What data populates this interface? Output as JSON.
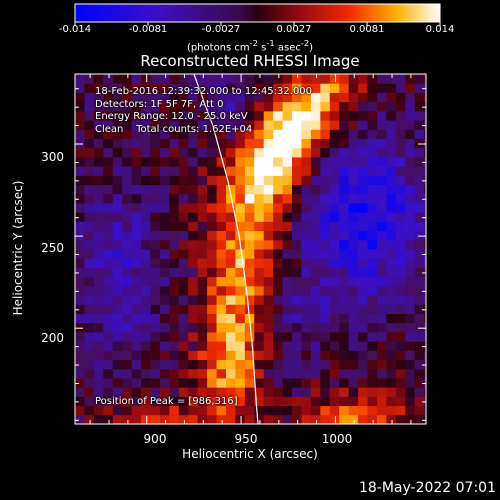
{
  "colorbar": {
    "ticks": [
      "-0.014",
      "-0.0081",
      "-0.0027",
      "0.0027",
      "0.0081",
      "0.014"
    ],
    "units_html": "(photons cm<sup>-2</sup> s<sup>-1</sup> asec<sup>-2</sup>)"
  },
  "title": "Reconstructed RHESSI Image",
  "info": {
    "line1": "18-Feb-2016 12:39:32.000 to 12:45:32.000",
    "line2": "Detectors: 1F 5F 7F, Att 0",
    "line3": "Energy Range: 12.0 - 25.0 keV",
    "line4": "Clean    Total counts: 1.62E+04"
  },
  "peak": "Position of Peak = [986,316]",
  "footer_date": "18-May-2022 07:01",
  "chart_data": {
    "type": "heatmap",
    "title": "Reconstructed RHESSI Image",
    "xlabel": "Heliocentric X (arcsec)",
    "ylabel": "Heliocentric Y (arcsec)",
    "xlim": [
      862,
      1048
    ],
    "ylim": [
      148,
      338
    ],
    "x_ticks": [
      900,
      950,
      1000
    ],
    "y_ticks": [
      200,
      250,
      300
    ],
    "colorbar_range": [
      -0.014,
      0.014
    ],
    "colormap": "blue-purple-red-yellow-white",
    "peak_position": [
      986,
      316
    ],
    "limb_curve": [
      [
        925,
        338
      ],
      [
        935,
        310
      ],
      [
        943,
        280
      ],
      [
        949,
        250
      ],
      [
        953,
        220
      ],
      [
        956,
        190
      ],
      [
        958,
        160
      ],
      [
        959,
        148
      ]
    ]
  }
}
